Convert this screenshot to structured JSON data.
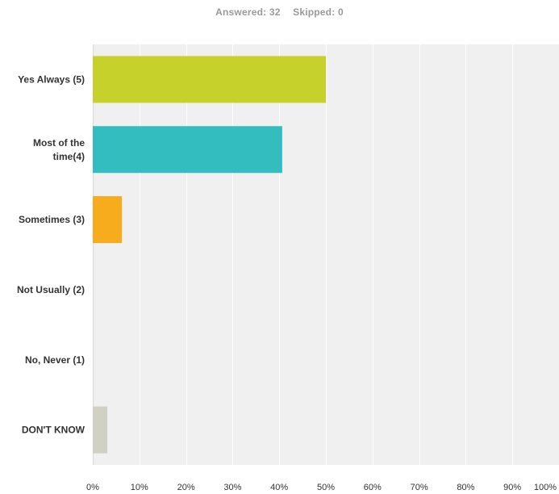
{
  "summary": {
    "answered": "Answered: 32",
    "skipped": "Skipped: 0"
  },
  "chart_data": {
    "type": "bar",
    "orientation": "horizontal",
    "categories": [
      [
        "Yes Always (5)"
      ],
      [
        "Most of the",
        "time(4)"
      ],
      [
        "Sometimes (3)"
      ],
      [
        "Not Usually (2)"
      ],
      [
        "No, Never (1)"
      ],
      [
        "DON'T KNOW"
      ]
    ],
    "values": [
      50,
      40.63,
      6.25,
      0,
      0,
      3.13
    ],
    "colors": [
      "#c7d12c",
      "#33bdbe",
      "#f6ac1d",
      "#9a9a9a",
      "#9a9a9a",
      "#d0d0c4"
    ],
    "xlim": [
      0,
      100
    ],
    "xticks": [
      "0%",
      "10%",
      "20%",
      "30%",
      "40%",
      "50%",
      "60%",
      "70%",
      "80%",
      "90%",
      "100%"
    ],
    "grid": true,
    "background": "#f0f0f0",
    "gridColor": "#ffffff"
  }
}
